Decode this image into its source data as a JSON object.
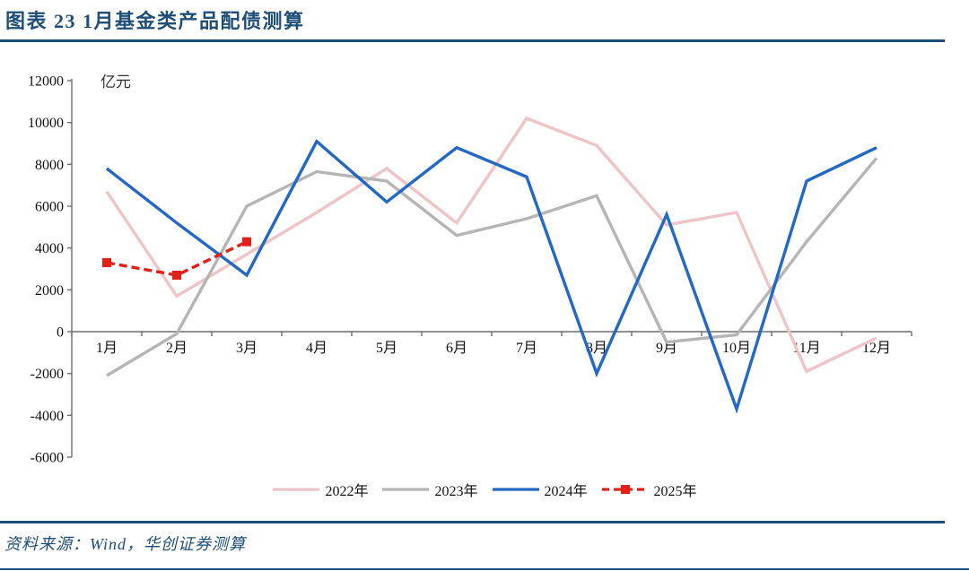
{
  "title": "图表 23  1月基金类产品配债测算",
  "source": "资料来源：Wind，华创证券测算",
  "colors": {
    "accent_navy": "#1F4E79",
    "axis": "#6E6E6E",
    "tick_text": "#111111",
    "unit_text": "#333333"
  },
  "chart_data": {
    "type": "line",
    "title": "1月基金类产品配债测算",
    "unit_label": "亿元",
    "xlabel": "",
    "ylabel": "亿元",
    "ylim": [
      -6000,
      12000
    ],
    "ytick_interval": 2000,
    "ytick_labels": [
      "12000",
      "10000",
      "8000",
      "6000",
      "4000",
      "2000",
      "0",
      "-2000",
      "-4000",
      "-6000"
    ],
    "grid": false,
    "legend_position": "bottom",
    "categories": [
      "1月",
      "2月",
      "3月",
      "4月",
      "5月",
      "6月",
      "7月",
      "8月",
      "9月",
      "10月",
      "11月",
      "12月"
    ],
    "series": [
      {
        "name": "2022年",
        "color": "#EFC4C6",
        "dash": false,
        "marker": "none",
        "values": [
          6700,
          1700,
          3700,
          5700,
          7800,
          5200,
          10200,
          8900,
          5100,
          5700,
          -1900,
          -300
        ]
      },
      {
        "name": "2023年",
        "color": "#B5B5B5",
        "dash": false,
        "marker": "none",
        "values": [
          -2100,
          -100,
          6000,
          7650,
          7200,
          4600,
          5400,
          6500,
          -500,
          -150,
          4300,
          8300
        ]
      },
      {
        "name": "2024年",
        "color": "#2268C4",
        "dash": false,
        "marker": "none",
        "values": [
          7800,
          5200,
          2700,
          9100,
          6200,
          8800,
          7400,
          -2000,
          5600,
          -3700,
          7200,
          8800
        ]
      },
      {
        "name": "2025年",
        "color": "#E02019",
        "dash": true,
        "marker": "square",
        "values": [
          3300,
          2700,
          4300,
          null,
          null,
          null,
          null,
          null,
          null,
          null,
          null,
          null
        ]
      }
    ]
  }
}
